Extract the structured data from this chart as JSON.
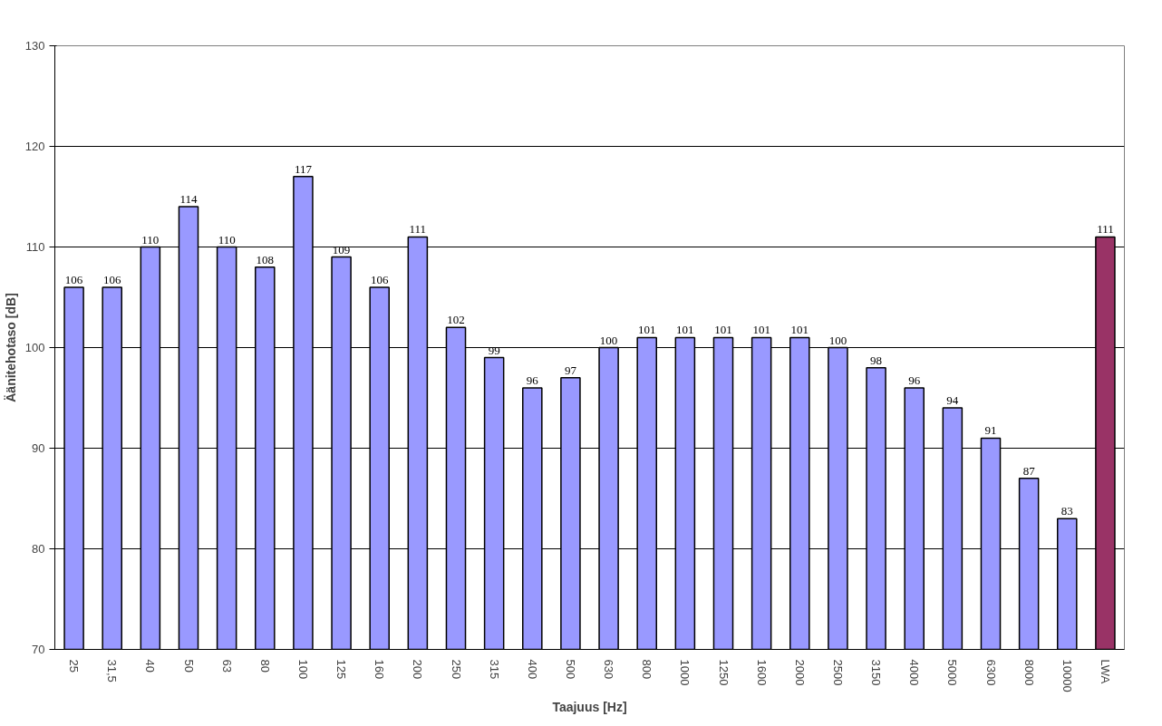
{
  "chart_data": {
    "type": "bar",
    "xlabel": "Taajuus [Hz]",
    "ylabel": "Äänitehotaso [dB]",
    "categories": [
      "25",
      "31,5",
      "40",
      "50",
      "63",
      "80",
      "100",
      "125",
      "160",
      "200",
      "250",
      "315",
      "400",
      "500",
      "630",
      "800",
      "1000",
      "1250",
      "1600",
      "2000",
      "2500",
      "3150",
      "4000",
      "5000",
      "6300",
      "8000",
      "10000",
      "LWA"
    ],
    "values": [
      106,
      106,
      110,
      114,
      110,
      108,
      117,
      109,
      106,
      111,
      102,
      99,
      96,
      97,
      100,
      101,
      101,
      101,
      101,
      101,
      100,
      98,
      96,
      94,
      91,
      87,
      83,
      111
    ],
    "colors": [
      "#9999ff",
      "#9999ff",
      "#9999ff",
      "#9999ff",
      "#9999ff",
      "#9999ff",
      "#9999ff",
      "#9999ff",
      "#9999ff",
      "#9999ff",
      "#9999ff",
      "#9999ff",
      "#9999ff",
      "#9999ff",
      "#9999ff",
      "#9999ff",
      "#9999ff",
      "#9999ff",
      "#9999ff",
      "#9999ff",
      "#9999ff",
      "#9999ff",
      "#9999ff",
      "#9999ff",
      "#9999ff",
      "#9999ff",
      "#9999ff",
      "#993366"
    ],
    "ylim": [
      70,
      130
    ],
    "yticks": [
      70,
      80,
      90,
      100,
      110,
      120,
      130
    ],
    "grid": "y",
    "data_labels": true
  }
}
